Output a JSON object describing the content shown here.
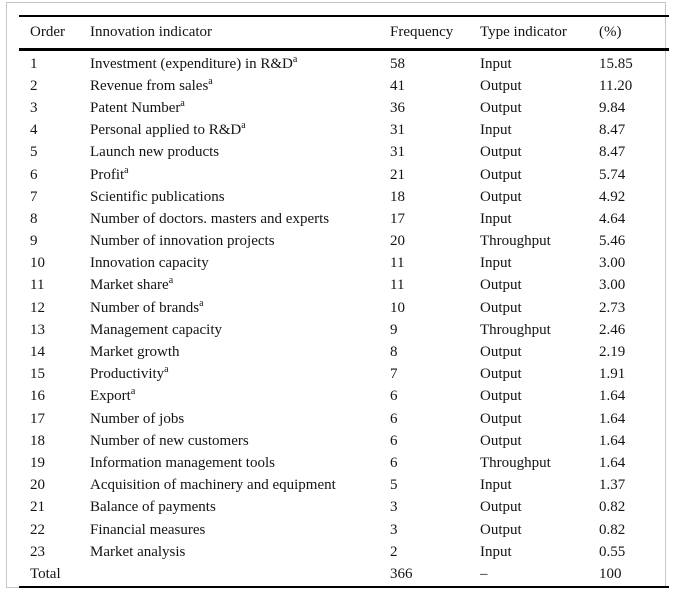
{
  "colors": {
    "background": "#ffffff",
    "text": "#141414",
    "rule": "#000000",
    "frame_border": "#c6c6c6"
  },
  "table": {
    "columns": [
      "Order",
      "Innovation indicator",
      "Frequency",
      "Type indicator",
      "(%)"
    ],
    "footnote_marker": "a",
    "rows": [
      {
        "order": "1",
        "indicator": "Investment (expenditure) in R&D",
        "sup": "a",
        "frequency": "58",
        "type": "Input",
        "pct": "15.85"
      },
      {
        "order": "2",
        "indicator": "Revenue from sales",
        "sup": "a",
        "frequency": "41",
        "type": "Output",
        "pct": "11.20"
      },
      {
        "order": "3",
        "indicator": "Patent Number",
        "sup": "a",
        "frequency": "36",
        "type": "Output",
        "pct": "9.84"
      },
      {
        "order": "4",
        "indicator": "Personal applied to R&D",
        "sup": "a",
        "frequency": "31",
        "type": "Input",
        "pct": "8.47"
      },
      {
        "order": "5",
        "indicator": "Launch new products",
        "sup": "",
        "frequency": "31",
        "type": "Output",
        "pct": "8.47"
      },
      {
        "order": "6",
        "indicator": "Profit",
        "sup": "a",
        "frequency": "21",
        "type": "Output",
        "pct": "5.74"
      },
      {
        "order": "7",
        "indicator": "Scientific publications",
        "sup": "",
        "frequency": "18",
        "type": "Output",
        "pct": "4.92"
      },
      {
        "order": "8",
        "indicator": "Number of doctors. masters and experts",
        "sup": "",
        "frequency": "17",
        "type": "Input",
        "pct": "4.64"
      },
      {
        "order": "9",
        "indicator": "Number of innovation projects",
        "sup": "",
        "frequency": "20",
        "type": "Throughput",
        "pct": "5.46"
      },
      {
        "order": "10",
        "indicator": "Innovation capacity",
        "sup": "",
        "frequency": "11",
        "type": "Input",
        "pct": "3.00"
      },
      {
        "order": "11",
        "indicator": "Market share",
        "sup": "a",
        "frequency": "11",
        "type": "Output",
        "pct": "3.00"
      },
      {
        "order": "12",
        "indicator": "Number of brands",
        "sup": "a",
        "frequency": "10",
        "type": "Output",
        "pct": "2.73"
      },
      {
        "order": "13",
        "indicator": "Management capacity",
        "sup": "",
        "frequency": "9",
        "type": "Throughput",
        "pct": "2.46"
      },
      {
        "order": "14",
        "indicator": "Market growth",
        "sup": "",
        "frequency": "8",
        "type": "Output",
        "pct": "2.19"
      },
      {
        "order": "15",
        "indicator": "Productivity",
        "sup": "a",
        "frequency": "7",
        "type": "Output",
        "pct": "1.91"
      },
      {
        "order": "16",
        "indicator": "Export",
        "sup": "a",
        "frequency": "6",
        "type": "Output",
        "pct": "1.64"
      },
      {
        "order": "17",
        "indicator": "Number of jobs",
        "sup": "",
        "frequency": "6",
        "type": "Output",
        "pct": "1.64"
      },
      {
        "order": "18",
        "indicator": "Number of new customers",
        "sup": "",
        "frequency": "6",
        "type": "Output",
        "pct": "1.64"
      },
      {
        "order": "19",
        "indicator": "Information management tools",
        "sup": "",
        "frequency": "6",
        "type": "Throughput",
        "pct": "1.64"
      },
      {
        "order": "20",
        "indicator": "Acquisition of machinery and equipment",
        "sup": "",
        "frequency": "5",
        "type": "Input",
        "pct": "1.37"
      },
      {
        "order": "21",
        "indicator": "Balance of payments",
        "sup": "",
        "frequency": "3",
        "type": "Output",
        "pct": "0.82"
      },
      {
        "order": "22",
        "indicator": "Financial measures",
        "sup": "",
        "frequency": "3",
        "type": "Output",
        "pct": "0.82"
      },
      {
        "order": "23",
        "indicator": "Market analysis",
        "sup": "",
        "frequency": "2",
        "type": "Input",
        "pct": "0.55"
      },
      {
        "order": "Total",
        "indicator": "",
        "sup": "",
        "frequency": "366",
        "type": "–",
        "pct": "100"
      }
    ]
  }
}
